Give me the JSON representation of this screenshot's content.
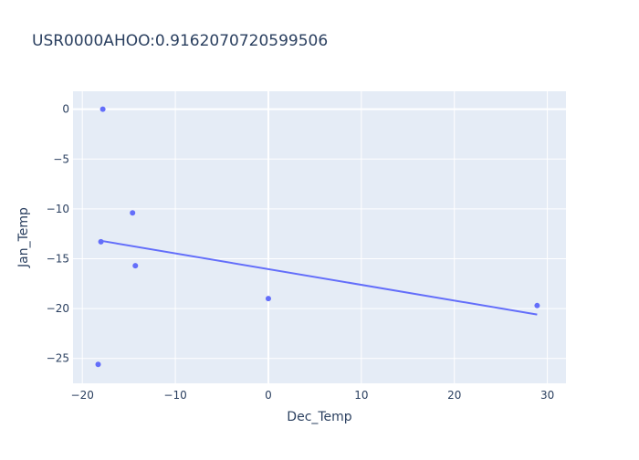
{
  "chart_data": {
    "type": "scatter",
    "title": "USR0000AHOO:0.9162070720599506",
    "xlabel": "Dec_Temp",
    "ylabel": "Jan_Temp",
    "xlim": [
      -21,
      32
    ],
    "ylim": [
      -27.5,
      1.8
    ],
    "xticks": [
      -20,
      -10,
      0,
      10,
      20,
      30
    ],
    "yticks": [
      0,
      -5,
      -10,
      -15,
      -20,
      -25
    ],
    "xtick_labels": [
      "−20",
      "−10",
      "0",
      "10",
      "20",
      "30"
    ],
    "ytick_labels": [
      "0",
      "−5",
      "−10",
      "−15",
      "−20",
      "−25"
    ],
    "grid": true,
    "legend": "none",
    "colors": {
      "plot_background": "#e5ecf6",
      "grid": "#ffffff",
      "marker": "#636efa",
      "line": "#636efa",
      "text": "#2a3f5f"
    },
    "series": [
      {
        "mode": "markers",
        "x": [
          -17.8,
          -14.6,
          -18.0,
          -14.3,
          0.0,
          28.9,
          -18.3
        ],
        "y": [
          0.0,
          -10.4,
          -13.3,
          -15.7,
          -19.0,
          -19.7,
          -25.6
        ]
      },
      {
        "mode": "line",
        "x": [
          -18.0,
          28.9
        ],
        "y": [
          -13.2,
          -20.6
        ]
      }
    ]
  }
}
